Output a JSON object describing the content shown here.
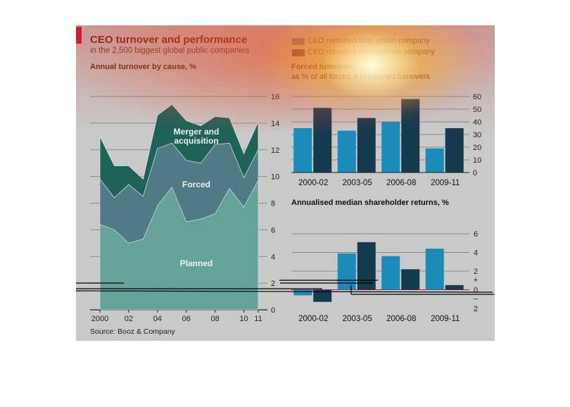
{
  "header": {
    "title": "CEO turnover and performance",
    "subtitle": "in the 2,500 biggest global public companies",
    "source": "Source: Booz & Company"
  },
  "legend": {
    "within": "CEO recruited from within company",
    "outside": "CEO recruited from outside company"
  },
  "colors": {
    "planned": "#65a39a",
    "forced": "#4f7a86",
    "merger": "#1f6258",
    "within": "#1a8ab8",
    "outside": "#163a4e",
    "panel": "#c9c9c9",
    "gridline": "#8a8a8a"
  },
  "chart_data": [
    {
      "type": "area",
      "title": "Annual turnover by cause, %",
      "stacked": true,
      "x_ticks": [
        "2000",
        "02",
        "04",
        "06",
        "08",
        "10",
        "11"
      ],
      "x": [
        2000,
        2001,
        2002,
        2003,
        2004,
        2005,
        2006,
        2007,
        2008,
        2009,
        2010,
        2011
      ],
      "ylim": [
        0,
        16
      ],
      "y_ticks": [
        0,
        2,
        4,
        6,
        8,
        10,
        12,
        14,
        16
      ],
      "series": [
        {
          "name": "Planned",
          "values": [
            6.4,
            6.0,
            5.0,
            5.3,
            7.8,
            9.2,
            6.6,
            6.8,
            7.2,
            9.1,
            7.7,
            9.7
          ]
        },
        {
          "name": "Forced",
          "values": [
            3.4,
            2.4,
            4.4,
            3.2,
            4.3,
            3.3,
            4.6,
            4.2,
            5.2,
            3.4,
            2.2,
            2.3
          ]
        },
        {
          "name": "Merger and acquisition",
          "values": [
            3.2,
            2.4,
            1.4,
            1.3,
            2.5,
            2.9,
            3.0,
            2.8,
            2.1,
            1.9,
            1.8,
            2.1
          ]
        }
      ]
    },
    {
      "type": "bar",
      "title": "Forced turnovers",
      "subtitle": "as % of all forced and planned turnovers",
      "categories": [
        "2000-02",
        "2003-05",
        "2006-08",
        "2009-11"
      ],
      "ylim": [
        0,
        60
      ],
      "y_ticks": [
        0,
        10,
        20,
        30,
        40,
        50,
        60
      ],
      "series": [
        {
          "name": "CEO recruited from within company",
          "values": [
            35,
            33,
            40,
            19
          ]
        },
        {
          "name": "CEO recruited from outside company",
          "values": [
            51,
            43,
            58,
            35
          ]
        }
      ]
    },
    {
      "type": "bar",
      "title": "Annualised median shareholder returns, %",
      "categories": [
        "2000-02",
        "2003-05",
        "2006-08",
        "2009-11"
      ],
      "ylim": [
        -2,
        6
      ],
      "y_ticks": [
        "6",
        "4",
        "2",
        "+",
        "0",
        "–",
        "2"
      ],
      "series": [
        {
          "name": "CEO recruited from within company",
          "values": [
            -0.6,
            3.9,
            3.6,
            4.4
          ]
        },
        {
          "name": "CEO recruited from outside company",
          "values": [
            -1.3,
            5.1,
            2.2,
            0.5
          ]
        }
      ]
    }
  ]
}
